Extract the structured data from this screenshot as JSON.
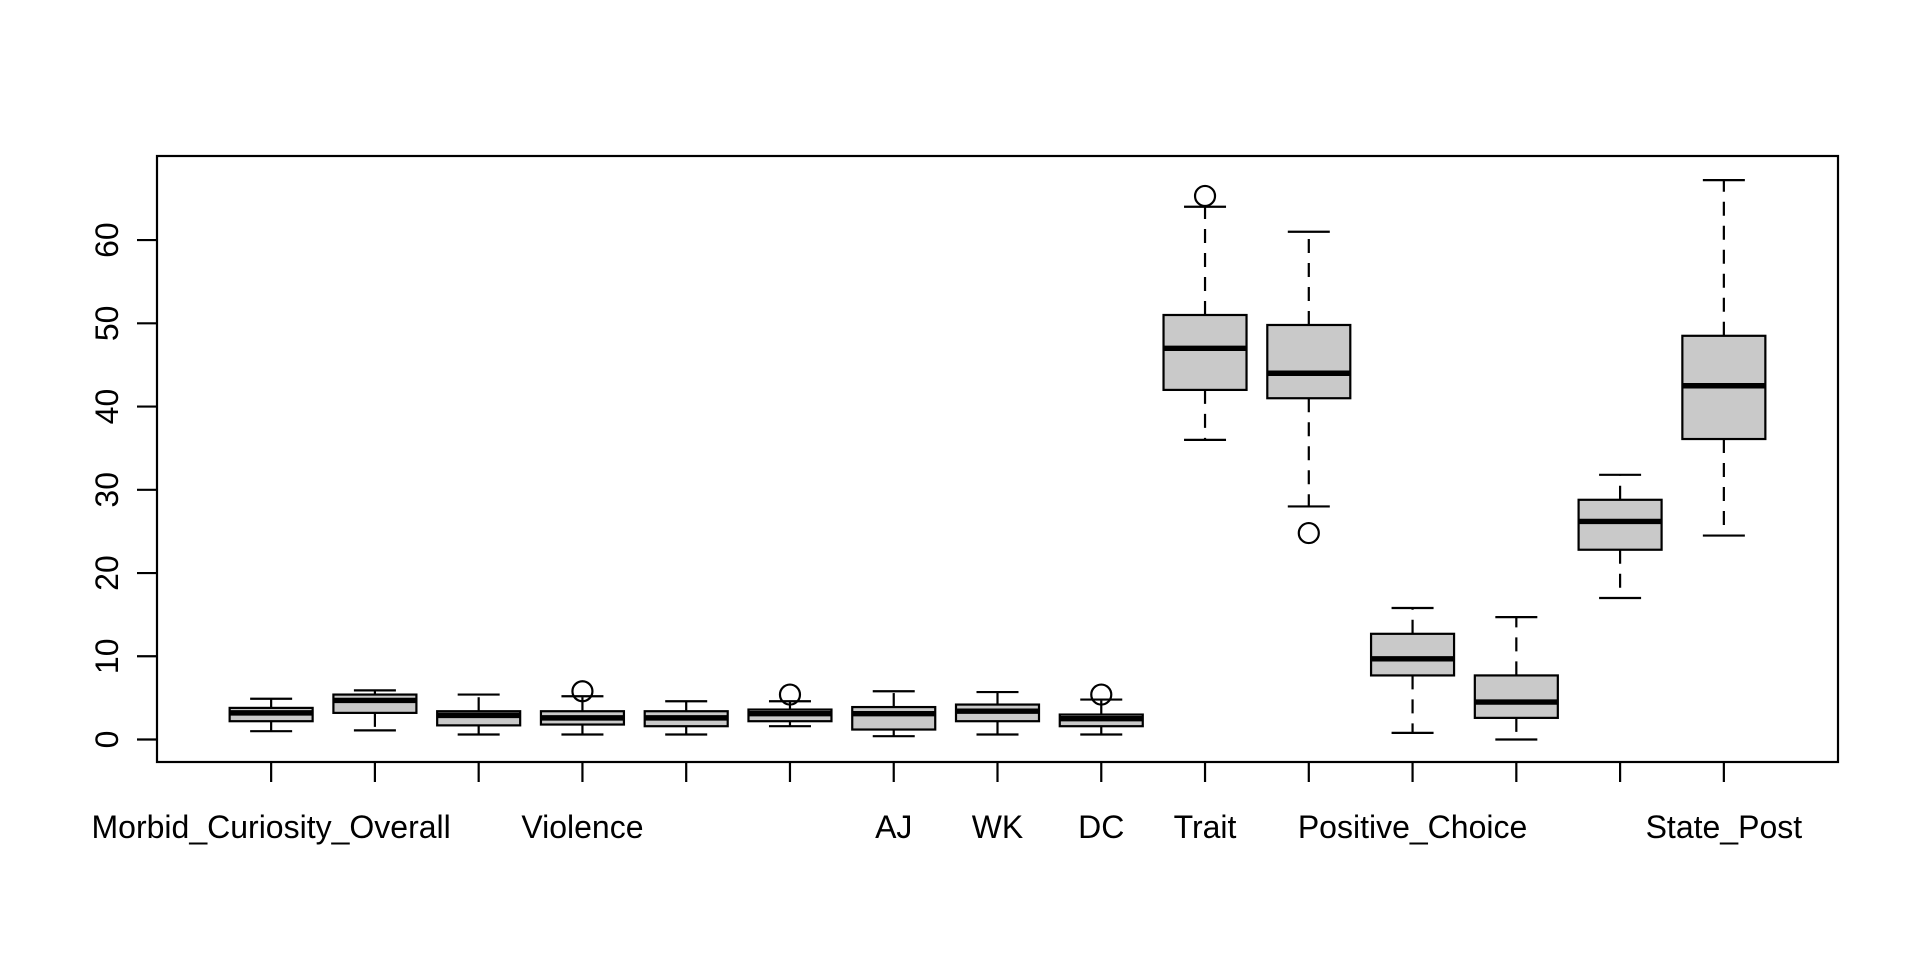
{
  "figure": {
    "background": "#ffffff",
    "description": "R-style base-graphics boxplot, 15 groups, no title, no axis titles"
  },
  "chart_data": {
    "type": "boxplot",
    "title": "",
    "xlabel": "",
    "ylabel": "",
    "grid": false,
    "legend": null,
    "ylim": [
      -2.7,
      70.1
    ],
    "y_ticks": [
      "0",
      "10",
      "20",
      "30",
      "40",
      "50",
      "60"
    ],
    "y_tick_values": [
      0,
      10,
      20,
      30,
      40,
      50,
      60
    ],
    "box_fill": "#c9c9c9",
    "line_color": "#000000",
    "whisker_style": "dashed",
    "groups": [
      {
        "label": "Morbid_Curiosity_Overall",
        "low": 1.0,
        "q1": 2.2,
        "median": 3.2,
        "q3": 3.8,
        "high": 4.9,
        "outliers": []
      },
      {
        "label": "",
        "low": 1.1,
        "q1": 3.2,
        "median": 4.7,
        "q3": 5.4,
        "high": 5.9,
        "outliers": []
      },
      {
        "label": "",
        "low": 0.6,
        "q1": 1.7,
        "median": 2.9,
        "q3": 3.4,
        "high": 5.4,
        "outliers": []
      },
      {
        "label": "Violence",
        "low": 0.6,
        "q1": 1.8,
        "median": 2.6,
        "q3": 3.4,
        "high": 5.2,
        "outliers": [
          5.8
        ]
      },
      {
        "label": "",
        "low": 0.6,
        "q1": 1.6,
        "median": 2.6,
        "q3": 3.4,
        "high": 4.6,
        "outliers": []
      },
      {
        "label": "",
        "low": 1.6,
        "q1": 2.2,
        "median": 3.1,
        "q3": 3.6,
        "high": 4.6,
        "outliers": [
          5.4
        ]
      },
      {
        "label": "AJ",
        "low": 0.4,
        "q1": 1.2,
        "median": 3.1,
        "q3": 3.9,
        "high": 5.8,
        "outliers": []
      },
      {
        "label": "WK",
        "low": 0.6,
        "q1": 2.2,
        "median": 3.4,
        "q3": 4.2,
        "high": 5.7,
        "outliers": []
      },
      {
        "label": "DC",
        "low": 0.6,
        "q1": 1.6,
        "median": 2.5,
        "q3": 3.0,
        "high": 4.8,
        "outliers": [
          5.4
        ]
      },
      {
        "label": "Trait",
        "low": 36.0,
        "q1": 42.0,
        "median": 47.0,
        "q3": 51.0,
        "high": 64.0,
        "outliers": [
          65.3
        ]
      },
      {
        "label": "",
        "low": 28.0,
        "q1": 41.0,
        "median": 44.0,
        "q3": 49.8,
        "high": 61.0,
        "outliers": [
          24.8
        ]
      },
      {
        "label": "Positive_Choice",
        "low": 0.8,
        "q1": 7.7,
        "median": 9.7,
        "q3": 12.7,
        "high": 15.8,
        "outliers": []
      },
      {
        "label": "",
        "low": 0.0,
        "q1": 2.6,
        "median": 4.5,
        "q3": 7.7,
        "high": 14.7,
        "outliers": []
      },
      {
        "label": "",
        "low": 17.0,
        "q1": 22.8,
        "median": 26.2,
        "q3": 28.8,
        "high": 31.8,
        "outliers": []
      },
      {
        "label": "State_Post",
        "low": 24.5,
        "q1": 36.1,
        "median": 42.5,
        "q3": 48.5,
        "high": 67.2,
        "outliers": []
      }
    ]
  }
}
